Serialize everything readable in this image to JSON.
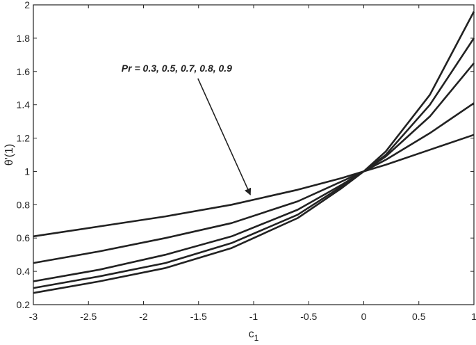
{
  "chart_data": {
    "type": "line",
    "title": "",
    "xlabel": "c",
    "xlabel_subscript": "1",
    "ylabel": "θ'(1)",
    "xlim": [
      -3,
      1
    ],
    "ylim": [
      0.2,
      2
    ],
    "xticks": [
      -3,
      -2.5,
      -2,
      -1.5,
      -1,
      -0.5,
      0,
      0.5,
      1
    ],
    "xtick_labels": [
      "-3",
      "-2.5",
      "-2",
      "-1.5",
      "-1",
      "-0.5",
      "0",
      "0.5",
      "1"
    ],
    "yticks": [
      0.2,
      0.4,
      0.6,
      0.8,
      1,
      1.2,
      1.4,
      1.6,
      1.8,
      2
    ],
    "ytick_labels": [
      "0.2",
      "0.4",
      "0.6",
      "0.8",
      "1",
      "1.2",
      "1.4",
      "1.6",
      "1.8",
      "2"
    ],
    "grid": false,
    "series": [
      {
        "x": [
          -3,
          -2.4,
          -1.8,
          -1.2,
          -0.6,
          -0.2,
          0,
          0.2,
          0.6,
          1
        ],
        "values": [
          0.61,
          0.67,
          0.73,
          0.8,
          0.89,
          0.96,
          1.0,
          1.04,
          1.13,
          1.22
        ]
      },
      {
        "x": [
          -3,
          -2.4,
          -1.8,
          -1.2,
          -0.6,
          -0.2,
          0,
          0.2,
          0.6,
          1
        ],
        "values": [
          0.45,
          0.52,
          0.6,
          0.69,
          0.82,
          0.94,
          1.0,
          1.07,
          1.23,
          1.41
        ]
      },
      {
        "x": [
          -3,
          -2.4,
          -1.8,
          -1.2,
          -0.6,
          -0.2,
          0,
          0.2,
          0.6,
          1
        ],
        "values": [
          0.34,
          0.41,
          0.5,
          0.61,
          0.77,
          0.92,
          1.0,
          1.09,
          1.33,
          1.65
        ]
      },
      {
        "x": [
          -3,
          -2.4,
          -1.8,
          -1.2,
          -0.6,
          -0.2,
          0,
          0.2,
          0.6,
          1
        ],
        "values": [
          0.3,
          0.37,
          0.45,
          0.57,
          0.74,
          0.91,
          1.0,
          1.1,
          1.4,
          1.8
        ]
      },
      {
        "x": [
          -3,
          -2.4,
          -1.8,
          -1.2,
          -0.6,
          -0.2,
          0,
          0.2,
          0.6,
          1
        ],
        "values": [
          0.27,
          0.34,
          0.42,
          0.54,
          0.72,
          0.9,
          1.0,
          1.12,
          1.46,
          1.96
        ]
      }
    ],
    "annotation": {
      "text": "Pr = 0.3, 0.5, 0.7, 0.8, 0.9",
      "x": -2.2,
      "y": 1.6,
      "arrow_to_x": -1.03,
      "arrow_to_y": 0.86
    }
  }
}
